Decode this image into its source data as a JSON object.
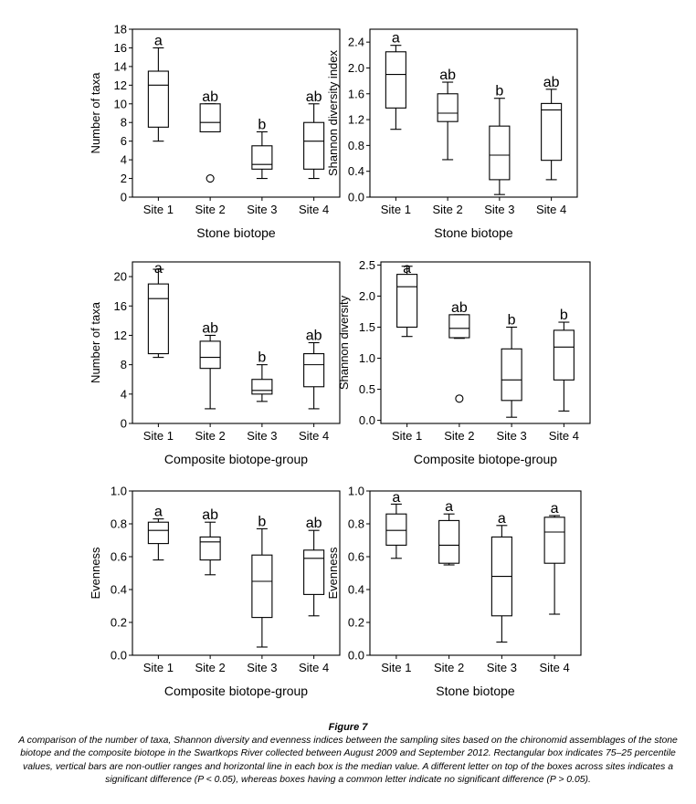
{
  "chart_data": [
    {
      "type": "box",
      "title": "",
      "xlabel": "Stone biotope",
      "ylabel": "Number of taxa",
      "ylim": [
        0,
        18
      ],
      "yticks": [
        "0",
        "2",
        "4",
        "6",
        "8",
        "10",
        "12",
        "14",
        "16",
        "18"
      ],
      "categories": [
        "Site 1",
        "Site 2",
        "Site 3",
        "Site 4"
      ],
      "boxes": [
        {
          "whisker_low": 6,
          "q1": 7.5,
          "median": 12,
          "q3": 13.5,
          "whisker_high": 16,
          "letter": "a",
          "outliers": []
        },
        {
          "whisker_low": 7,
          "q1": 7,
          "median": 8,
          "q3": 10,
          "whisker_high": 10,
          "letter": "ab",
          "outliers": [
            2
          ]
        },
        {
          "whisker_low": 2,
          "q1": 3,
          "median": 3.5,
          "q3": 5.5,
          "whisker_high": 7,
          "letter": "b",
          "outliers": []
        },
        {
          "whisker_low": 2,
          "q1": 3,
          "median": 6,
          "q3": 8,
          "whisker_high": 10,
          "letter": "ab",
          "outliers": []
        }
      ]
    },
    {
      "type": "box",
      "title": "",
      "xlabel": "Stone biotope",
      "ylabel": "Shannon diversity index",
      "ylim": [
        0,
        2.6
      ],
      "yticks": [
        "0.0",
        "0.4",
        "0.8",
        "1.2",
        "1.6",
        "2.0",
        "2.4"
      ],
      "categories": [
        "Site 1",
        "Site 2",
        "Site 3",
        "Site 4"
      ],
      "boxes": [
        {
          "whisker_low": 1.05,
          "q1": 1.38,
          "median": 1.9,
          "q3": 2.25,
          "whisker_high": 2.35,
          "letter": "a",
          "outliers": []
        },
        {
          "whisker_low": 0.58,
          "q1": 1.17,
          "median": 1.3,
          "q3": 1.6,
          "whisker_high": 1.78,
          "letter": "ab",
          "outliers": []
        },
        {
          "whisker_low": 0.04,
          "q1": 0.27,
          "median": 0.65,
          "q3": 1.1,
          "whisker_high": 1.53,
          "letter": "b",
          "outliers": []
        },
        {
          "whisker_low": 0.27,
          "q1": 0.57,
          "median": 1.35,
          "q3": 1.45,
          "whisker_high": 1.67,
          "letter": "ab",
          "outliers": []
        }
      ]
    },
    {
      "type": "box",
      "title": "",
      "xlabel": "Composite biotope-group",
      "ylabel": "Number of taxa",
      "ylim": [
        0,
        22
      ],
      "yticks": [
        "0",
        "4",
        "8",
        "12",
        "16",
        "20"
      ],
      "categories": [
        "Site 1",
        "Site 2",
        "Site 3",
        "Site 4"
      ],
      "boxes": [
        {
          "whisker_low": 9,
          "q1": 9.5,
          "median": 17,
          "q3": 19,
          "whisker_high": 21,
          "letter": "a",
          "outliers": []
        },
        {
          "whisker_low": 2,
          "q1": 7.5,
          "median": 9,
          "q3": 11.2,
          "whisker_high": 12,
          "letter": "ab",
          "outliers": []
        },
        {
          "whisker_low": 3,
          "q1": 4,
          "median": 4.5,
          "q3": 6,
          "whisker_high": 8,
          "letter": "b",
          "outliers": []
        },
        {
          "whisker_low": 2,
          "q1": 5,
          "median": 8,
          "q3": 9.5,
          "whisker_high": 11,
          "letter": "ab",
          "outliers": []
        }
      ]
    },
    {
      "type": "box",
      "title": "",
      "xlabel": "Composite biotope-group",
      "ylabel": "Shannon diversity",
      "ylim": [
        -0.05,
        2.55
      ],
      "yticks": [
        "0.0",
        "0.5",
        "1.0",
        "1.5",
        "2.0",
        "2.5"
      ],
      "categories": [
        "Site 1",
        "Site 2",
        "Site 3",
        "Site 4"
      ],
      "boxes": [
        {
          "whisker_low": 1.35,
          "q1": 1.5,
          "median": 2.15,
          "q3": 2.35,
          "whisker_high": 2.48,
          "letter": "a",
          "outliers": []
        },
        {
          "whisker_low": 1.32,
          "q1": 1.33,
          "median": 1.48,
          "q3": 1.7,
          "whisker_high": 1.7,
          "letter": "ab",
          "outliers": [
            0.35
          ]
        },
        {
          "whisker_low": 0.05,
          "q1": 0.32,
          "median": 0.65,
          "q3": 1.15,
          "whisker_high": 1.5,
          "letter": "b",
          "outliers": []
        },
        {
          "whisker_low": 0.15,
          "q1": 0.65,
          "median": 1.18,
          "q3": 1.45,
          "whisker_high": 1.58,
          "letter": "b",
          "outliers": []
        }
      ]
    },
    {
      "type": "box",
      "title": "",
      "xlabel": "Composite biotope-group",
      "ylabel": "Evenness",
      "ylim": [
        0,
        1.0
      ],
      "yticks": [
        "0.0",
        "0.2",
        "0.4",
        "0.6",
        "0.8",
        "1.0"
      ],
      "categories": [
        "Site 1",
        "Site 2",
        "Site 3",
        "Site 4"
      ],
      "boxes": [
        {
          "whisker_low": 0.58,
          "q1": 0.68,
          "median": 0.76,
          "q3": 0.81,
          "whisker_high": 0.83,
          "letter": "a",
          "outliers": []
        },
        {
          "whisker_low": 0.49,
          "q1": 0.58,
          "median": 0.69,
          "q3": 0.72,
          "whisker_high": 0.81,
          "letter": "ab",
          "outliers": []
        },
        {
          "whisker_low": 0.05,
          "q1": 0.23,
          "median": 0.45,
          "q3": 0.61,
          "whisker_high": 0.77,
          "letter": "b",
          "outliers": []
        },
        {
          "whisker_low": 0.24,
          "q1": 0.37,
          "median": 0.59,
          "q3": 0.64,
          "whisker_high": 0.76,
          "letter": "ab",
          "outliers": []
        }
      ]
    },
    {
      "type": "box",
      "title": "",
      "xlabel": "Stone biotope",
      "ylabel": "Evenness",
      "ylim": [
        0,
        1.0
      ],
      "yticks": [
        "0.0",
        "0.2",
        "0.4",
        "0.6",
        "0.8",
        "1.0"
      ],
      "categories": [
        "Site 1",
        "Site 2",
        "Site 3",
        "Site 4"
      ],
      "boxes": [
        {
          "whisker_low": 0.59,
          "q1": 0.67,
          "median": 0.76,
          "q3": 0.86,
          "whisker_high": 0.92,
          "letter": "a",
          "outliers": []
        },
        {
          "whisker_low": 0.55,
          "q1": 0.56,
          "median": 0.67,
          "q3": 0.82,
          "whisker_high": 0.86,
          "letter": "a",
          "outliers": []
        },
        {
          "whisker_low": 0.08,
          "q1": 0.24,
          "median": 0.48,
          "q3": 0.72,
          "whisker_high": 0.79,
          "letter": "a",
          "outliers": []
        },
        {
          "whisker_low": 0.25,
          "q1": 0.56,
          "median": 0.75,
          "q3": 0.84,
          "whisker_high": 0.85,
          "letter": "a",
          "outliers": []
        }
      ]
    }
  ],
  "caption": {
    "label": "Figure 7",
    "text": "A comparison of the number of taxa, Shannon diversity and evenness indices between the sampling sites based on the chironomid assemblages of the stone biotope and the composite biotope in the Swartkops River collected between August 2009 and September 2012. Rectangular box indicates 75–25 percentile values, vertical bars are non-outlier ranges and horizontal line in each box is the median value. A different letter on top of the boxes across sites indicates a significant difference (P < 0.05), whereas boxes having a common letter indicate no significant difference (P > 0.05)."
  }
}
